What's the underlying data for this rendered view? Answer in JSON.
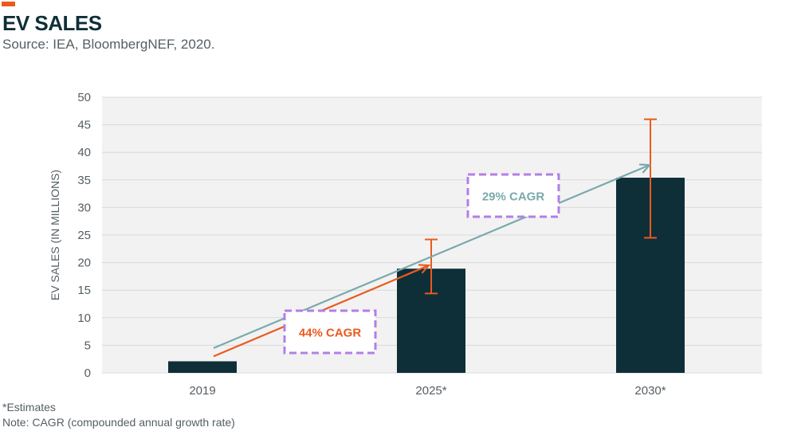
{
  "header": {
    "title": "EV SALES",
    "subtitle": "Source: IEA, BloombergNEF, 2020."
  },
  "footnotes": {
    "estimates": "*Estimates",
    "note": "Note: CAGR (compounded annual growth rate)"
  },
  "colors": {
    "accent": "#ea5a1e",
    "bar": "#0f2f38",
    "error_bar": "#ea5a1e",
    "arrow_44": "#ea5a1e",
    "arrow_29": "#7aa9ad",
    "callout_border": "#b37fe6",
    "grid": "#d9d9d9",
    "plot_bg": "#f2f2f2"
  },
  "chart_data": {
    "type": "bar",
    "title": "EV SALES",
    "subtitle": "Source: IEA, BloombergNEF, 2020.",
    "ylabel": "EV SALES (IN MILLIONS)",
    "xlabel": "",
    "categories": [
      "2019",
      "2025*",
      "2030*"
    ],
    "values": [
      2.1,
      18.9,
      35.4
    ],
    "error_bars": [
      null,
      {
        "low": 14.4,
        "high": 24.2
      },
      {
        "low": 24.5,
        "high": 46.0
      }
    ],
    "ylim": [
      0,
      50
    ],
    "yticks": [
      "0",
      "5",
      "10",
      "15",
      "20",
      "25",
      "30",
      "35",
      "40",
      "45",
      "50"
    ],
    "grid": true,
    "annotations": [
      {
        "label": "44% CAGR",
        "from": {
          "category": "2019",
          "value": 3.0
        },
        "to": {
          "category": "2025*",
          "value": 19.5
        }
      },
      {
        "label": "29% CAGR",
        "from": {
          "category": "2019",
          "value": 4.5
        },
        "to": {
          "category": "2030*",
          "value": 37.7
        }
      }
    ]
  }
}
